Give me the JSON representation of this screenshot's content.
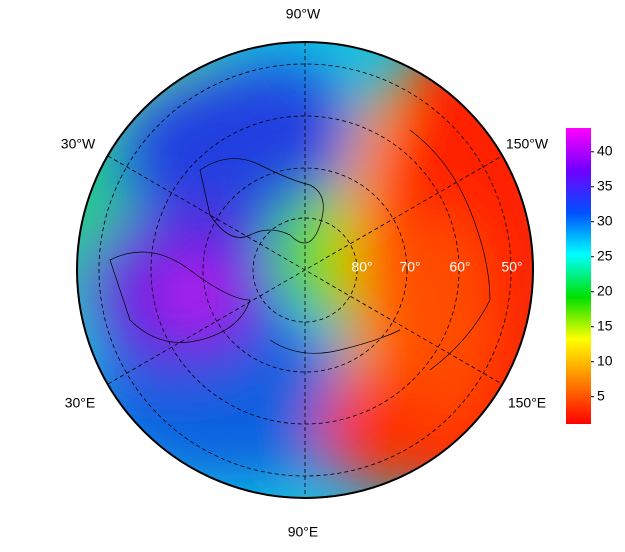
{
  "map": {
    "meridian_labels": [
      "90°W",
      "30°W",
      "150°W",
      "30°E",
      "150°E",
      "90°E"
    ],
    "parallel_labels": [
      "80°",
      "70°",
      "60°",
      "50°"
    ],
    "colorbar": {
      "lim": [
        1.1,
        43.4
      ],
      "ticks": [
        5,
        10,
        15,
        20,
        25,
        30,
        35,
        40
      ],
      "colors": [
        "#ff0000",
        "#ff8000",
        "#ffff00",
        "#00e000",
        "#00ffff",
        "#0050ff",
        "#7000ff",
        "#ff00ff"
      ]
    }
  }
}
